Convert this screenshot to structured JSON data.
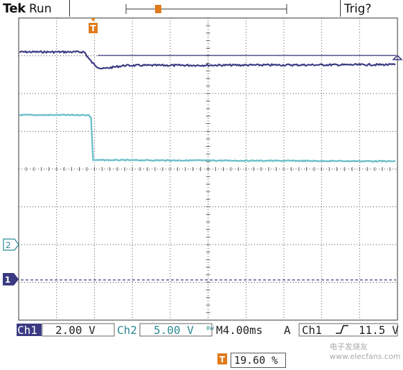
{
  "header": {
    "brand": "Tek",
    "status": "Run",
    "trigger_status": "Trig?"
  },
  "markers": {
    "trigger_marker": "T",
    "ch1_marker": "1",
    "ch2_marker": "2"
  },
  "readout": {
    "ch1_label": "Ch1",
    "ch1_scale": "2.00 V",
    "ch2_label": "Ch2",
    "ch2_scale": "5.00 V",
    "bw_badge": "BW",
    "timebase": "M4.00ms",
    "trigger_mode": "A",
    "trigger_source": "Ch1",
    "trigger_level": "11.5 V",
    "trigger_position": "19.60 %"
  },
  "watermark": "电子发烧友 www.elecfans.com",
  "colors": {
    "ch1": "#3a3a82",
    "ch2": "#6cc0c8",
    "ch2_text": "#2a8a94",
    "grid": "#444444",
    "trigger_marker": "#e07a1a"
  }
}
